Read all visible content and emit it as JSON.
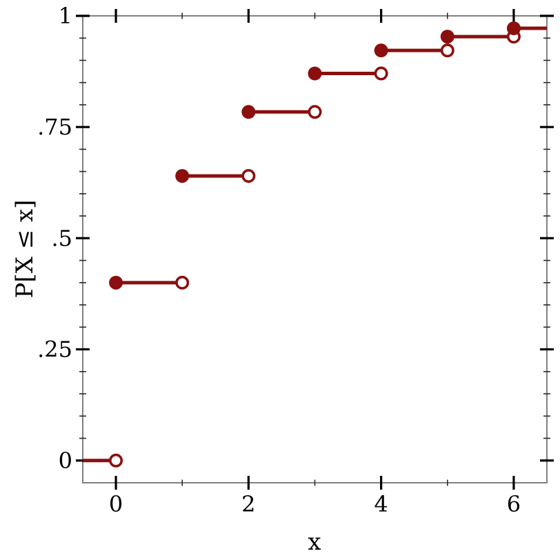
{
  "chart_data": {
    "type": "step",
    "title": "",
    "xlabel": "x",
    "ylabel": "P[X ≤ x]",
    "xlim": [
      -0.5,
      6.5
    ],
    "ylim": [
      -0.05,
      1.0
    ],
    "grid": false,
    "legend": "none",
    "x_major_ticks": [
      {
        "v": 0,
        "label": "0"
      },
      {
        "v": 2,
        "label": "2"
      },
      {
        "v": 4,
        "label": "4"
      },
      {
        "v": 6,
        "label": "6"
      }
    ],
    "x_minor_ticks": [
      1,
      3,
      5
    ],
    "y_major_ticks": [
      {
        "v": 0,
        "label": "0"
      },
      {
        "v": 0.25,
        "label": ".25"
      },
      {
        "v": 0.5,
        "label": ".5"
      },
      {
        "v": 0.75,
        "label": ".75"
      },
      {
        "v": 1,
        "label": "1"
      }
    ],
    "y_minor_ticks": [
      0.05,
      0.1,
      0.15,
      0.2,
      0.3,
      0.35,
      0.4,
      0.45,
      0.55,
      0.6,
      0.65,
      0.7,
      0.8,
      0.85,
      0.9,
      0.95
    ],
    "steps": [
      {
        "x0": -0.5,
        "x1": 0,
        "y": 0,
        "start_dot": "none",
        "end_dot": "open"
      },
      {
        "x0": 0,
        "x1": 1,
        "y": 0.4,
        "start_dot": "filled",
        "end_dot": "open"
      },
      {
        "x0": 1,
        "x1": 2,
        "y": 0.64,
        "start_dot": "filled",
        "end_dot": "open"
      },
      {
        "x0": 2,
        "x1": 3,
        "y": 0.784,
        "start_dot": "filled",
        "end_dot": "open"
      },
      {
        "x0": 3,
        "x1": 4,
        "y": 0.8704,
        "start_dot": "filled",
        "end_dot": "open"
      },
      {
        "x0": 4,
        "x1": 5,
        "y": 0.9222,
        "start_dot": "filled",
        "end_dot": "open"
      },
      {
        "x0": 5,
        "x1": 6,
        "y": 0.9533,
        "start_dot": "filled",
        "end_dot": "open"
      },
      {
        "x0": 6,
        "x1": 6.5,
        "y": 0.972,
        "start_dot": "filled",
        "end_dot": "none"
      }
    ],
    "colors": {
      "line": "#8b0f0f",
      "axis": "#808080",
      "major_tick": "#000000",
      "minor_tick": "#2a2a2a",
      "text": "#000000",
      "background": "#ffffff"
    }
  }
}
